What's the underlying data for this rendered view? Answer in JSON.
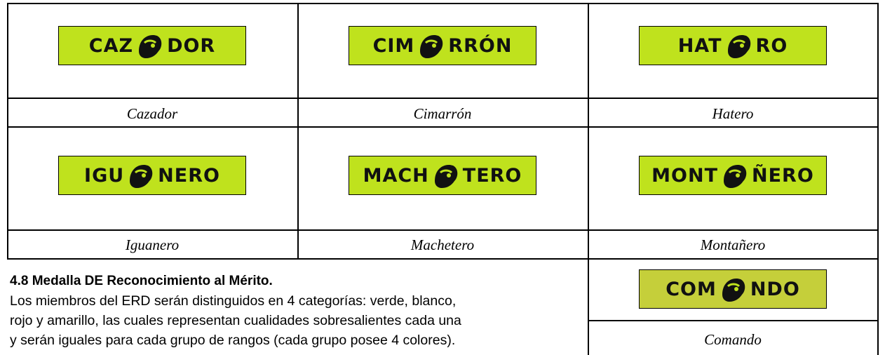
{
  "cells": [
    {
      "left": "CAZ",
      "right": "DOR",
      "caption": "Cazador"
    },
    {
      "left": "CIM",
      "right": "RRÓN",
      "caption": "Cimarrón"
    },
    {
      "left": "HAT",
      "right": "RO",
      "caption": "Hatero"
    },
    {
      "left": "IGU",
      "right": "NERO",
      "caption": "Iguanero"
    },
    {
      "left": "MACH",
      "right": "TERO",
      "caption": "Machetero"
    },
    {
      "left": "MONT",
      "right": "ÑERO",
      "caption": "Montañero"
    },
    {
      "left": "COM",
      "right": "NDO",
      "caption": "Comando"
    }
  ],
  "section": {
    "heading": "4.8 Medalla DE Reconocimiento al Mérito.",
    "lines": [
      "Los miembros del ERD serán distinguidos en 4 categorías: verde,    blanco,",
      "rojo y amarillo, las cuales representan cualidades sobresalientes cada una",
      "y serán iguales para cada grupo de rangos (cada grupo posee 4 colores)."
    ]
  }
}
